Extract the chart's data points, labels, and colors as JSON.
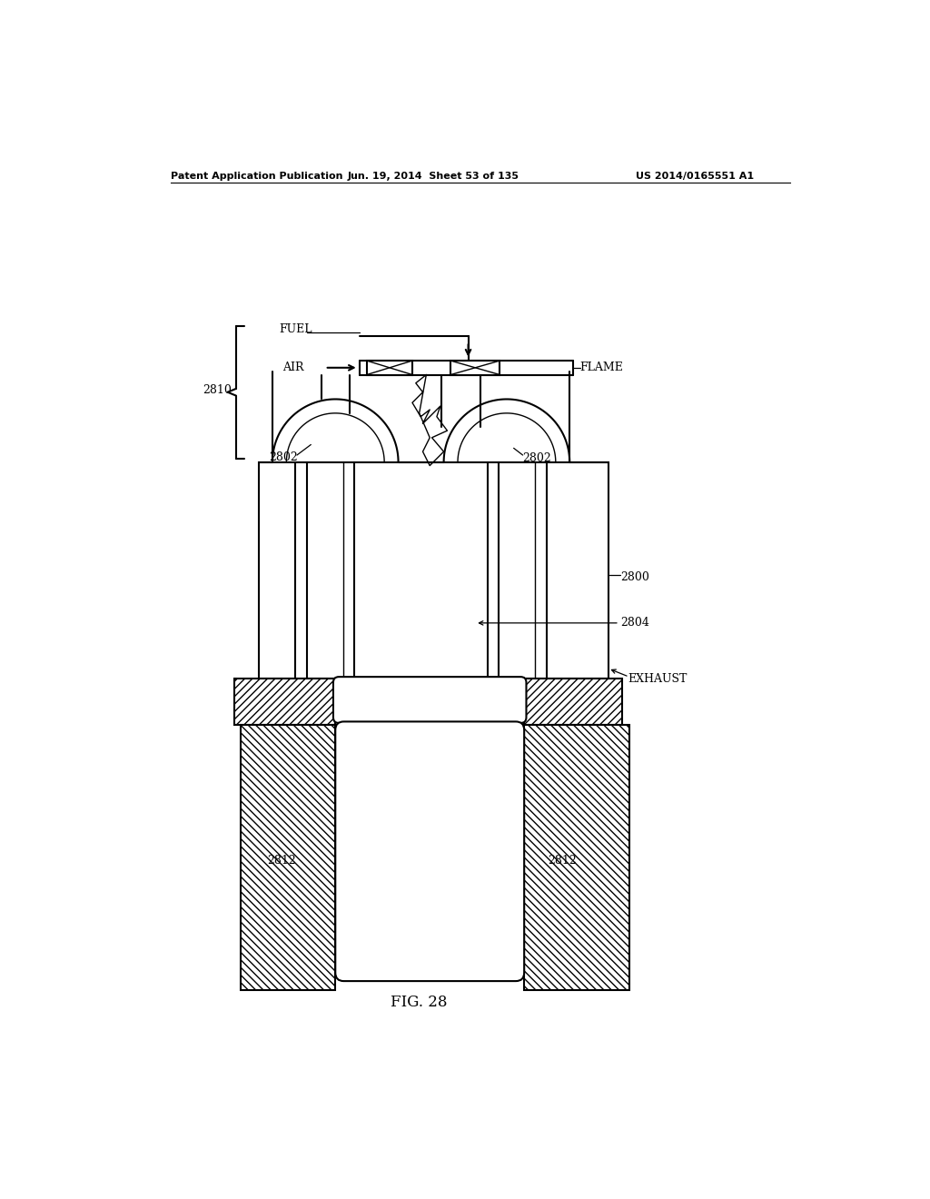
{
  "header_left": "Patent Application Publication",
  "header_mid": "Jun. 19, 2014  Sheet 53 of 135",
  "header_right": "US 2014/0165551 A1",
  "figure_label": "FIG. 28",
  "bg_color": "#ffffff",
  "line_color": "#000000",
  "lw_main": 1.5,
  "lw_thin": 1.0,
  "font_size_label": 9,
  "font_size_header": 8,
  "font_size_fig": 12
}
